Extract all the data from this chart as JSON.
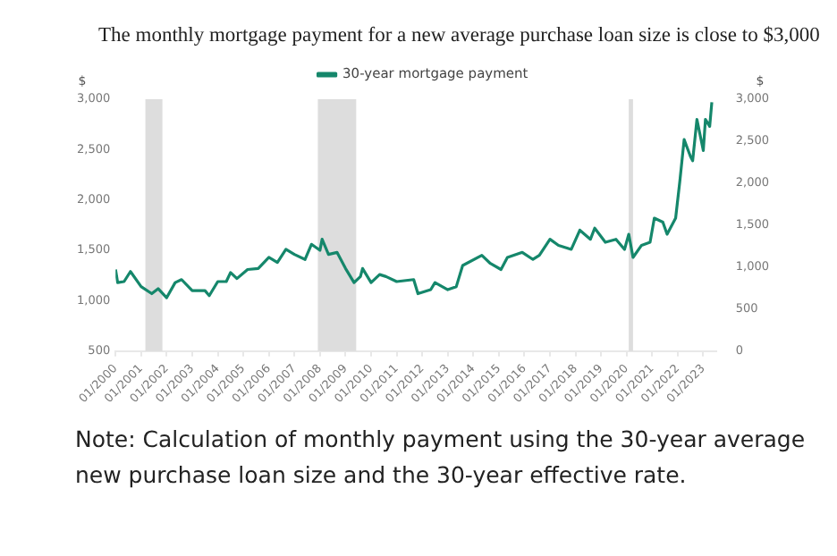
{
  "chart_data": {
    "type": "line",
    "title": "The monthly mortgage payment for a new average purchase loan size is close to $3,000",
    "ylabel": "$",
    "y2label": "$",
    "annotations": [
      "Note: Calculation of monthly payment using the 30-year average new purchase loan size and the 30-year effective rate."
    ],
    "x": [
      "2000-01",
      "2000-02",
      "2000-05",
      "2000-08",
      "2001-01",
      "2001-06",
      "2001-09",
      "2002-01",
      "2002-05",
      "2002-08",
      "2003-01",
      "2003-07",
      "2003-09",
      "2004-01",
      "2004-05",
      "2004-07",
      "2004-10",
      "2005-03",
      "2005-08",
      "2006-01",
      "2006-05",
      "2006-09",
      "2007-01",
      "2007-06",
      "2007-09",
      "2008-01",
      "2008-02",
      "2008-05",
      "2008-09",
      "2009-01",
      "2009-05",
      "2009-08",
      "2009-09",
      "2010-01",
      "2010-05",
      "2010-08",
      "2011-01",
      "2011-09",
      "2011-11",
      "2012-05",
      "2012-07",
      "2013-01",
      "2013-05",
      "2013-08",
      "2014-05",
      "2014-09",
      "2015-02",
      "2015-05",
      "2015-12",
      "2016-05",
      "2016-08",
      "2017-01",
      "2017-05",
      "2017-11",
      "2018-03",
      "2018-08",
      "2018-10",
      "2019-03",
      "2019-08",
      "2019-12",
      "2020-02",
      "2020-04",
      "2020-08",
      "2020-12",
      "2021-02",
      "2021-06",
      "2021-08",
      "2021-12",
      "2022-02",
      "2022-04",
      "2022-07",
      "2022-08",
      "2022-10",
      "2023-01",
      "2023-02",
      "2023-04",
      "2023-05"
    ],
    "series": [
      {
        "name": "30-year mortgage payment",
        "color": "#15876b",
        "values": [
          1310,
          1180,
          1190,
          1290,
          1140,
          1070,
          1120,
          1030,
          1180,
          1210,
          1100,
          1100,
          1050,
          1190,
          1190,
          1280,
          1220,
          1310,
          1320,
          1430,
          1380,
          1510,
          1460,
          1410,
          1560,
          1500,
          1610,
          1460,
          1480,
          1320,
          1180,
          1240,
          1320,
          1180,
          1260,
          1240,
          1190,
          1210,
          1070,
          1110,
          1180,
          1110,
          1140,
          1350,
          1450,
          1370,
          1310,
          1430,
          1480,
          1410,
          1450,
          1610,
          1550,
          1510,
          1700,
          1610,
          1720,
          1580,
          1610,
          1510,
          1660,
          1430,
          1550,
          1580,
          1820,
          1780,
          1660,
          1820,
          2190,
          2600,
          2430,
          2390,
          2800,
          2490,
          2800,
          2730,
          2970
        ]
      }
    ],
    "xlim": [
      "2000-01",
      "2023-07"
    ],
    "xticks": [
      {
        "value": "2000-01",
        "label": "01/2000"
      },
      {
        "value": "2001-01",
        "label": "01/2001"
      },
      {
        "value": "2002-01",
        "label": "01/2002"
      },
      {
        "value": "2003-01",
        "label": "01/2003"
      },
      {
        "value": "2004-01",
        "label": "01/2004"
      },
      {
        "value": "2005-01",
        "label": "01/2005"
      },
      {
        "value": "2006-01",
        "label": "01/2006"
      },
      {
        "value": "2007-01",
        "label": "01/2007"
      },
      {
        "value": "2008-01",
        "label": "01/2008"
      },
      {
        "value": "2009-01",
        "label": "01/2009"
      },
      {
        "value": "2010-01",
        "label": "01/2010"
      },
      {
        "value": "2011-01",
        "label": "01/2011"
      },
      {
        "value": "2012-01",
        "label": "01/2012"
      },
      {
        "value": "2013-01",
        "label": "01/2013"
      },
      {
        "value": "2014-01",
        "label": "01/2014"
      },
      {
        "value": "2015-01",
        "label": "01/2015"
      },
      {
        "value": "2016-01",
        "label": "01/2016"
      },
      {
        "value": "2017-01",
        "label": "01/2017"
      },
      {
        "value": "2018-01",
        "label": "01/2018"
      },
      {
        "value": "2019-01",
        "label": "01/2019"
      },
      {
        "value": "2020-01",
        "label": "01/2020"
      },
      {
        "value": "2021-01",
        "label": "01/2021"
      },
      {
        "value": "2022-01",
        "label": "01/2022"
      },
      {
        "value": "2023-01",
        "label": "01/2023"
      }
    ],
    "ylim": [
      500,
      3000
    ],
    "yticks": [
      {
        "value": 500,
        "label": "500"
      },
      {
        "value": 1000,
        "label": "1,000"
      },
      {
        "value": 1500,
        "label": "1,500"
      },
      {
        "value": 2000,
        "label": "2,000"
      },
      {
        "value": 2500,
        "label": "2,500"
      },
      {
        "value": 3000,
        "label": "3,000"
      }
    ],
    "y2lim": [
      0,
      3000
    ],
    "y2ticks": [
      {
        "value": 0,
        "label": "0"
      },
      {
        "value": 500,
        "label": "500"
      },
      {
        "value": 1000,
        "label": "1,000"
      },
      {
        "value": 1500,
        "label": "1,500"
      },
      {
        "value": 2000,
        "label": "2,000"
      },
      {
        "value": 2500,
        "label": "2,500"
      },
      {
        "value": 3000,
        "label": "3,000"
      }
    ],
    "bands": [
      {
        "axis": "x",
        "from": "2001-03",
        "to": "2001-11",
        "color": "#dddddd"
      },
      {
        "axis": "x",
        "from": "2007-12",
        "to": "2009-06",
        "color": "#dddddd"
      },
      {
        "axis": "x",
        "from": "2020-02",
        "to": "2020-04",
        "color": "#dddddd"
      }
    ],
    "grid": false,
    "legend": "top",
    "marker": "none",
    "line_style": "solid"
  }
}
